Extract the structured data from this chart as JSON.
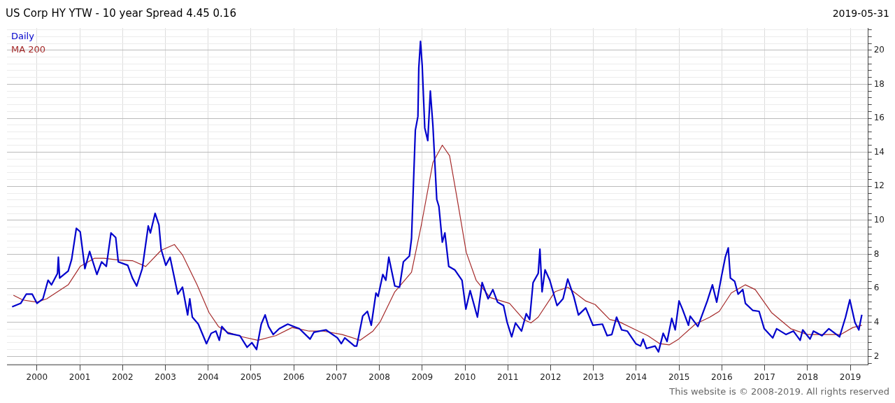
{
  "chart_data": {
    "type": "line",
    "title": "US Corp HY YTW - 10 year Spread 4.45 0.16",
    "subtitle": "2019-05-31",
    "annotations": [
      "This website is © 2008-2019. All rights reserved"
    ],
    "xlim": [
      1999.3,
      2019.42
    ],
    "xticks": [
      2000,
      2001,
      2002,
      2003,
      2004,
      2005,
      2006,
      2007,
      2008,
      2009,
      2010,
      2011,
      2012,
      2013,
      2014,
      2015,
      2016,
      2017,
      2018,
      2019
    ],
    "ylim": [
      1.5,
      21.3
    ],
    "yticks": [
      {
        "value": 1.6,
        "label": null
      },
      2,
      {
        "value": 2.4,
        "label": null
      },
      {
        "value": 2.8,
        "label": null
      },
      {
        "value": 3.2,
        "label": null
      },
      {
        "value": 3.6,
        "label": null
      },
      4,
      {
        "value": 4.4,
        "label": null
      },
      {
        "value": 4.8,
        "label": null
      },
      {
        "value": 5.2,
        "label": null
      },
      {
        "value": 5.6,
        "label": null
      },
      6,
      {
        "value": 6.4,
        "label": null
      },
      {
        "value": 6.8,
        "label": null
      },
      {
        "value": 7.2,
        "label": null
      },
      {
        "value": 7.6,
        "label": null
      },
      8,
      {
        "value": 8.4,
        "label": null
      },
      {
        "value": 8.8,
        "label": null
      },
      {
        "value": 9.2,
        "label": null
      },
      {
        "value": 9.6,
        "label": null
      },
      10,
      {
        "value": 10.4,
        "label": null
      },
      {
        "value": 10.8,
        "label": null
      },
      {
        "value": 11.2,
        "label": null
      },
      {
        "value": 11.6,
        "label": null
      },
      12,
      {
        "value": 12.4,
        "label": null
      },
      {
        "value": 12.8,
        "label": null
      },
      {
        "value": 13.2,
        "label": null
      },
      {
        "value": 13.6,
        "label": null
      },
      14,
      {
        "value": 14.4,
        "label": null
      },
      {
        "value": 14.8,
        "label": null
      },
      {
        "value": 15.2,
        "label": null
      },
      {
        "value": 15.6,
        "label": null
      },
      16,
      {
        "value": 16.4,
        "label": null
      },
      {
        "value": 16.8,
        "label": null
      },
      {
        "value": 17.2,
        "label": null
      },
      {
        "value": 17.6,
        "label": null
      },
      18,
      {
        "value": 18.4,
        "label": null
      },
      {
        "value": 18.8,
        "label": null
      },
      {
        "value": 19.2,
        "label": null
      },
      {
        "value": 19.6,
        "label": null
      },
      20,
      {
        "value": 20.4,
        "label": null
      },
      {
        "value": 20.8,
        "label": null
      },
      {
        "value": 21.2,
        "label": null
      }
    ],
    "grid": true,
    "legend": "top left",
    "marker": "none",
    "line_style": "solid",
    "series": [
      {
        "name": "Daily",
        "color": "#0000cc",
        "x": [
          1999.42,
          1999.62,
          1999.75,
          1999.89,
          2000.0,
          2000.14,
          2000.26,
          2000.34,
          2000.48,
          2000.5,
          2000.53,
          2000.73,
          2000.81,
          2000.92,
          2001.01,
          2001.12,
          2001.23,
          2001.4,
          2001.51,
          2001.62,
          2001.73,
          2001.84,
          2001.9,
          2002.12,
          2002.23,
          2002.33,
          2002.46,
          2002.6,
          2002.65,
          2002.76,
          2002.85,
          2002.9,
          2003.01,
          2003.11,
          2003.29,
          2003.4,
          2003.52,
          2003.57,
          2003.63,
          2003.77,
          2003.96,
          2004.07,
          2004.18,
          2004.26,
          2004.32,
          2004.46,
          2004.74,
          2004.91,
          2005.02,
          2005.13,
          2005.24,
          2005.33,
          2005.41,
          2005.52,
          2005.66,
          2005.86,
          2006.0,
          2006.13,
          2006.38,
          2006.47,
          2006.75,
          2007.02,
          2007.11,
          2007.19,
          2007.42,
          2007.47,
          2007.61,
          2007.72,
          2007.81,
          2007.92,
          2007.97,
          2008.08,
          2008.15,
          2008.22,
          2008.36,
          2008.47,
          2008.56,
          2008.7,
          2008.75,
          2008.84,
          2008.9,
          2008.92,
          2008.96,
          2009.0,
          2009.06,
          2009.13,
          2009.19,
          2009.25,
          2009.34,
          2009.39,
          2009.47,
          2009.53,
          2009.62,
          2009.76,
          2009.93,
          2010.02,
          2010.12,
          2010.29,
          2010.4,
          2010.54,
          2010.65,
          2010.76,
          2010.9,
          2010.98,
          2011.09,
          2011.18,
          2011.32,
          2011.43,
          2011.51,
          2011.59,
          2011.71,
          2011.75,
          2011.8,
          2011.87,
          2011.98,
          2012.15,
          2012.29,
          2012.4,
          2012.54,
          2012.65,
          2012.82,
          2012.99,
          2013.21,
          2013.32,
          2013.43,
          2013.54,
          2013.66,
          2013.79,
          2013.99,
          2014.1,
          2014.16,
          2014.24,
          2014.44,
          2014.52,
          2014.63,
          2014.72,
          2014.83,
          2014.91,
          2015.0,
          2015.08,
          2015.22,
          2015.26,
          2015.44,
          2015.66,
          2015.78,
          2015.88,
          2015.99,
          2016.08,
          2016.15,
          2016.2,
          2016.3,
          2016.38,
          2016.49,
          2016.55,
          2016.72,
          2016.87,
          2016.99,
          2017.19,
          2017.28,
          2017.5,
          2017.67,
          2017.83,
          2017.89,
          2018.06,
          2018.14,
          2018.34,
          2018.5,
          2018.75,
          2018.89,
          2018.99,
          2019.11,
          2019.2,
          2019.27
        ],
        "values": [
          4.92,
          5.12,
          5.66,
          5.66,
          5.12,
          5.39,
          6.48,
          6.21,
          6.88,
          7.83,
          6.61,
          7.02,
          7.7,
          9.53,
          9.33,
          7.16,
          8.17,
          6.82,
          7.56,
          7.29,
          9.26,
          8.99,
          7.56,
          7.36,
          6.61,
          6.14,
          7.16,
          9.67,
          9.26,
          10.41,
          9.73,
          8.31,
          7.36,
          7.83,
          5.66,
          6.07,
          4.44,
          5.39,
          4.31,
          3.9,
          2.75,
          3.36,
          3.49,
          2.95,
          3.76,
          3.36,
          3.22,
          2.54,
          2.81,
          2.41,
          3.9,
          4.44,
          3.76,
          3.29,
          3.63,
          3.9,
          3.76,
          3.63,
          3.02,
          3.42,
          3.56,
          3.09,
          2.75,
          3.09,
          2.61,
          2.61,
          4.37,
          4.65,
          3.83,
          5.73,
          5.53,
          6.82,
          6.48,
          7.83,
          6.14,
          6.07,
          7.56,
          7.9,
          8.92,
          15.3,
          16.11,
          18.96,
          20.52,
          19.1,
          15.43,
          14.69,
          17.6,
          15.57,
          11.23,
          10.82,
          8.72,
          9.26,
          7.29,
          7.09,
          6.48,
          4.78,
          5.87,
          4.31,
          6.34,
          5.39,
          5.93,
          5.19,
          4.99,
          4.04,
          3.15,
          3.97,
          3.49,
          4.51,
          4.17,
          6.34,
          6.88,
          8.31,
          5.8,
          7.09,
          6.48,
          4.99,
          5.39,
          6.55,
          5.53,
          4.44,
          4.85,
          3.83,
          3.9,
          3.22,
          3.29,
          4.31,
          3.56,
          3.49,
          2.75,
          2.61,
          3.02,
          2.47,
          2.61,
          2.27,
          3.36,
          2.88,
          4.24,
          3.56,
          5.26,
          4.78,
          3.83,
          4.37,
          3.76,
          5.26,
          6.21,
          5.19,
          6.68,
          7.83,
          8.38,
          6.61,
          6.41,
          5.66,
          5.93,
          5.12,
          4.71,
          4.65,
          3.63,
          3.09,
          3.63,
          3.29,
          3.49,
          2.95,
          3.56,
          3.02,
          3.49,
          3.22,
          3.63,
          3.15,
          4.31,
          5.33,
          3.99,
          3.56,
          4.45
        ]
      },
      {
        "name": "MA 200",
        "color": "#a52a2a",
        "x": [
          1999.45,
          1999.67,
          2000.0,
          2000.23,
          2000.73,
          2001.01,
          2001.34,
          2001.57,
          2001.9,
          2002.23,
          2002.54,
          2002.9,
          2003.21,
          2003.4,
          2003.74,
          2004.02,
          2004.24,
          2004.46,
          2004.8,
          2005.16,
          2005.58,
          2005.96,
          2006.36,
          2006.69,
          2007.13,
          2007.55,
          2007.85,
          2008.02,
          2008.36,
          2008.75,
          2008.98,
          2009.25,
          2009.47,
          2009.64,
          2009.81,
          2010.03,
          2010.26,
          2010.59,
          2011.04,
          2011.37,
          2011.54,
          2011.71,
          2012.1,
          2012.4,
          2012.82,
          2013.04,
          2013.38,
          2013.6,
          2013.99,
          2014.27,
          2014.55,
          2014.77,
          2014.99,
          2015.38,
          2015.72,
          2015.94,
          2016.22,
          2016.55,
          2016.78,
          2017.16,
          2017.61,
          2018.0,
          2018.45,
          2018.78,
          2019.06,
          2019.27
        ],
        "values": [
          5.6,
          5.32,
          5.19,
          5.39,
          6.21,
          7.29,
          7.77,
          7.77,
          7.67,
          7.63,
          7.29,
          8.24,
          8.58,
          7.97,
          6.21,
          4.58,
          3.76,
          3.42,
          3.15,
          2.95,
          3.22,
          3.7,
          3.49,
          3.49,
          3.29,
          2.95,
          3.49,
          4.04,
          5.8,
          6.95,
          9.73,
          13.4,
          14.42,
          13.8,
          11.36,
          8.11,
          6.48,
          5.46,
          5.12,
          4.17,
          3.97,
          4.31,
          5.8,
          6.07,
          5.26,
          5.05,
          4.17,
          4.04,
          3.56,
          3.22,
          2.75,
          2.68,
          3.02,
          3.9,
          4.31,
          4.65,
          5.73,
          6.21,
          5.93,
          4.58,
          3.63,
          3.29,
          3.29,
          3.29,
          3.7,
          3.83
        ]
      }
    ]
  }
}
